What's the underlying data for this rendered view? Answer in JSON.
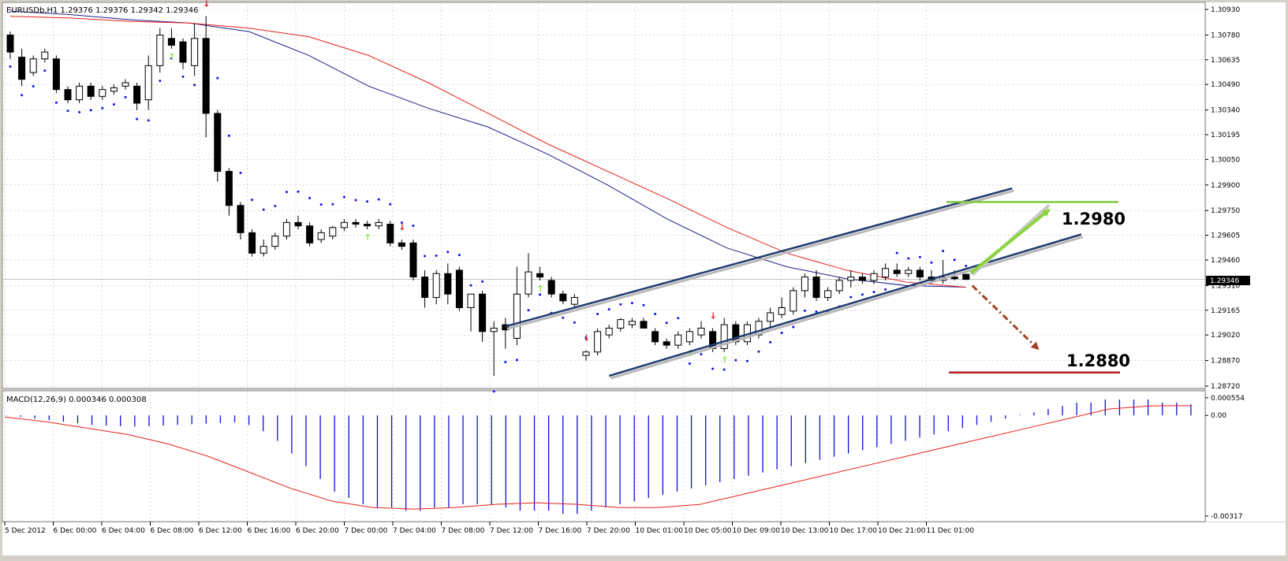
{
  "symbol_info": "EURUSDb,H1  1.29376 1.29376 1.29342 1.29346",
  "macd_info": "MACD(12,26,9) 0.000346 0.000308",
  "price_axis": {
    "min": 1.2872,
    "max": 1.3093,
    "ticks": [
      "1.30930",
      "1.30780",
      "1.30635",
      "1.30490",
      "1.30340",
      "1.30195",
      "1.30050",
      "1.29900",
      "1.29750",
      "1.29605",
      "1.29460",
      "1.29310",
      "1.29165",
      "1.29020",
      "1.28870",
      "1.28720"
    ],
    "current_price": "1.29346"
  },
  "macd_axis": {
    "min": -0.00317,
    "max": 0.00055,
    "ticks": [
      "0.000554",
      "0.00",
      "-0.00317"
    ]
  },
  "time_labels": [
    "5 Dec 2012",
    "6 Dec 00:00",
    "6 Dec 04:00",
    "6 Dec 08:00",
    "6 Dec 12:00",
    "6 Dec 16:00",
    "6 Dec 20:00",
    "7 Dec 00:00",
    "7 Dec 04:00",
    "7 Dec 08:00",
    "7 Dec 12:00",
    "7 Dec 16:00",
    "7 Dec 20:00",
    "10 Dec 01:00",
    "10 Dec 05:00",
    "10 Dec 09:00",
    "10 Dec 13:00",
    "10 Dec 17:00",
    "10 Dec 21:00",
    "11 Dec 01:00"
  ],
  "annotations": {
    "target_up": "1.2980",
    "target_down": "1.2880"
  },
  "colors": {
    "bg": "#ffffff",
    "grid": "#c0c0c0",
    "candle": "#000000",
    "ma_fast": "#e8211c",
    "ma_slow": "#1c1f8a",
    "sar": "#1010f0",
    "macd_hist": "#1010d8",
    "macd_signal": "#e8211c",
    "channel": "#1f3a6e",
    "target_up_line": "#80c840",
    "target_down_line": "#b02020",
    "arrow_up": "#8ad43c",
    "arrow_down": "#a04020",
    "signal_up": "#8ae840",
    "signal_down": "#e02020"
  },
  "chart_data": {
    "type": "candlestick",
    "timeframe": "H1",
    "ohlc": [
      [
        1.3078,
        1.308,
        1.3064,
        1.3068
      ],
      [
        1.3065,
        1.307,
        1.3048,
        1.3052
      ],
      [
        1.3056,
        1.3066,
        1.3054,
        1.3064
      ],
      [
        1.3064,
        1.307,
        1.3062,
        1.3068
      ],
      [
        1.3064,
        1.3066,
        1.3044,
        1.3046
      ],
      [
        1.3046,
        1.3048,
        1.3038,
        1.304
      ],
      [
        1.304,
        1.305,
        1.3038,
        1.3048
      ],
      [
        1.3048,
        1.305,
        1.304,
        1.3042
      ],
      [
        1.3042,
        1.3048,
        1.304,
        1.3046
      ],
      [
        1.3045,
        1.3049,
        1.3043,
        1.3047
      ],
      [
        1.3048,
        1.3052,
        1.3046,
        1.305
      ],
      [
        1.3048,
        1.305,
        1.3034,
        1.3038
      ],
      [
        1.304,
        1.3066,
        1.3034,
        1.306
      ],
      [
        1.306,
        1.3082,
        1.3056,
        1.3078
      ],
      [
        1.3076,
        1.3082,
        1.307,
        1.3072
      ],
      [
        1.3074,
        1.3076,
        1.3058,
        1.3062
      ],
      [
        1.306,
        1.3085,
        1.3054,
        1.3076
      ],
      [
        1.3076,
        1.3089,
        1.3018,
        1.3032
      ],
      [
        1.3032,
        1.3034,
        1.2992,
        1.2998
      ],
      [
        1.2998,
        1.3,
        1.2972,
        1.2978
      ],
      [
        1.2978,
        1.298,
        1.2958,
        1.2962
      ],
      [
        1.2962,
        1.2964,
        1.2948,
        1.295
      ],
      [
        1.295,
        1.2958,
        1.2948,
        1.2954
      ],
      [
        1.2954,
        1.2962,
        1.2952,
        1.296
      ],
      [
        1.296,
        1.297,
        1.2958,
        1.2968
      ],
      [
        1.2968,
        1.2972,
        1.2964,
        1.2966
      ],
      [
        1.2966,
        1.2968,
        1.2954,
        1.2956
      ],
      [
        1.2958,
        1.2964,
        1.2956,
        1.2962
      ],
      [
        1.296,
        1.2966,
        1.2958,
        1.2965
      ],
      [
        1.2965,
        1.297,
        1.2963,
        1.2968
      ],
      [
        1.2968,
        1.297,
        1.2965,
        1.2967
      ],
      [
        1.2967,
        1.2969,
        1.2964,
        1.2966
      ],
      [
        1.2966,
        1.297,
        1.2964,
        1.2968
      ],
      [
        1.2967,
        1.2969,
        1.2954,
        1.2956
      ],
      [
        1.2956,
        1.2958,
        1.2952,
        1.2954
      ],
      [
        1.2956,
        1.2958,
        1.2934,
        1.2936
      ],
      [
        1.2936,
        1.294,
        1.2918,
        1.2924
      ],
      [
        1.2924,
        1.294,
        1.292,
        1.2938
      ],
      [
        1.2938,
        1.2944,
        1.292,
        1.2926
      ],
      [
        1.294,
        1.2942,
        1.2916,
        1.2918
      ],
      [
        1.2918,
        1.2926,
        1.2904,
        1.2926
      ],
      [
        1.2926,
        1.2928,
        1.2898,
        1.2904
      ],
      [
        1.2904,
        1.291,
        1.2878,
        1.2906
      ],
      [
        1.2908,
        1.2912,
        1.2894,
        1.2905
      ],
      [
        1.29,
        1.2942,
        1.2896,
        1.2926
      ],
      [
        1.2926,
        1.295,
        1.2924,
        1.2939
      ],
      [
        1.2938,
        1.2942,
        1.2934,
        1.2936
      ],
      [
        1.2934,
        1.2936,
        1.2924,
        1.2926
      ],
      [
        1.2926,
        1.2928,
        1.292,
        1.2922
      ],
      [
        1.292,
        1.2926,
        1.2918,
        1.2924
      ],
      [
        1.289,
        1.2893,
        1.2887,
        1.2892
      ],
      [
        1.2892,
        1.2906,
        1.289,
        1.2904
      ],
      [
        1.2902,
        1.2908,
        1.29,
        1.2906
      ],
      [
        1.2906,
        1.2912,
        1.2904,
        1.2911
      ],
      [
        1.2908,
        1.2912,
        1.2906,
        1.291
      ],
      [
        1.291,
        1.2912,
        1.2906,
        1.2906
      ],
      [
        1.2904,
        1.2906,
        1.2896,
        1.2898
      ],
      [
        1.2898,
        1.29,
        1.2894,
        1.2896
      ],
      [
        1.2896,
        1.2904,
        1.2894,
        1.2902
      ],
      [
        1.2898,
        1.2906,
        1.2896,
        1.2904
      ],
      [
        1.2902,
        1.291,
        1.29,
        1.2906
      ],
      [
        1.2904,
        1.2906,
        1.2892,
        1.2894
      ],
      [
        1.2894,
        1.2912,
        1.2892,
        1.2908
      ],
      [
        1.2908,
        1.291,
        1.2896,
        1.2898
      ],
      [
        1.2898,
        1.291,
        1.2896,
        1.2908
      ],
      [
        1.2902,
        1.2912,
        1.29,
        1.291
      ],
      [
        1.291,
        1.2918,
        1.2906,
        1.2915
      ],
      [
        1.2914,
        1.2924,
        1.2912,
        1.2918
      ],
      [
        1.2916,
        1.293,
        1.2914,
        1.2928
      ],
      [
        1.2928,
        1.2938,
        1.2924,
        1.2936
      ],
      [
        1.2936,
        1.294,
        1.2922,
        1.2924
      ],
      [
        1.2924,
        1.293,
        1.2922,
        1.2928
      ],
      [
        1.2928,
        1.2936,
        1.2926,
        1.2934
      ],
      [
        1.2934,
        1.294,
        1.293,
        1.2936
      ],
      [
        1.2936,
        1.2938,
        1.2932,
        1.2934
      ],
      [
        1.2934,
        1.294,
        1.2932,
        1.2938
      ],
      [
        1.2936,
        1.2944,
        1.2934,
        1.2941
      ],
      [
        1.294,
        1.2944,
        1.2936,
        1.2938
      ],
      [
        1.2938,
        1.2942,
        1.2936,
        1.294
      ],
      [
        1.294,
        1.2942,
        1.2934,
        1.2936
      ],
      [
        1.2936,
        1.294,
        1.2932,
        1.2934
      ],
      [
        1.2934,
        1.2946,
        1.2932,
        1.2936
      ],
      [
        1.2936,
        1.294,
        1.2934,
        1.2935
      ],
      [
        1.29376,
        1.29376,
        1.29342,
        1.29346
      ]
    ],
    "ma_fast": [
      1.3089,
      1.3088,
      1.3086,
      1.3085,
      1.3082,
      1.3077,
      1.3066,
      1.305,
      1.3032,
      1.3014,
      1.2998,
      1.2982,
      1.2965,
      1.295,
      1.294,
      1.2933,
      1.293
    ],
    "ma_slow": [
      1.3092,
      1.309,
      1.3087,
      1.3085,
      1.308,
      1.3066,
      1.3048,
      1.3035,
      1.3024,
      1.3008,
      1.299,
      1.297,
      1.2953,
      1.2942,
      1.2935,
      1.2931,
      1.293
    ],
    "macd_hist": [
      -1e-05,
      -5e-05,
      -0.0001,
      -0.00015,
      -0.0002,
      -0.00025,
      -0.0003,
      -0.00032,
      -0.00034,
      -0.00035,
      -0.00034,
      -0.00032,
      -0.0003,
      -0.00028,
      -0.00026,
      -0.00024,
      -0.00022,
      -0.0003,
      -0.0005,
      -0.0008,
      -0.0012,
      -0.0016,
      -0.002,
      -0.0024,
      -0.0026,
      -0.0028,
      -0.0029,
      -0.0029,
      -0.003,
      -0.003,
      -0.0029,
      -0.0029,
      -0.0028,
      -0.0028,
      -0.0028,
      -0.0029,
      -0.003,
      -0.003,
      -0.003,
      -0.0031,
      -0.0031,
      -0.003,
      -0.0029,
      -0.0028,
      -0.0027,
      -0.0026,
      -0.0025,
      -0.0024,
      -0.0023,
      -0.0022,
      -0.0021,
      -0.002,
      -0.0019,
      -0.0018,
      -0.0017,
      -0.0016,
      -0.0015,
      -0.0014,
      -0.0013,
      -0.0012,
      -0.0011,
      -0.001,
      -0.0009,
      -0.0008,
      -0.0007,
      -0.0006,
      -0.0005,
      -0.0004,
      -0.0003,
      -0.0002,
      -0.0001,
      2e-05,
      0.0001,
      0.0002,
      0.0003,
      0.0004,
      0.0004,
      0.0005,
      0.0005,
      0.0005,
      0.0005,
      0.0004,
      0.0004,
      0.000346
    ],
    "macd_signal": [
      -5e-05,
      -0.0002,
      -0.0004,
      -0.0006,
      -0.0009,
      -0.0013,
      -0.0018,
      -0.0023,
      -0.0027,
      -0.0029,
      -0.00295,
      -0.0029,
      -0.0028,
      -0.00275,
      -0.0028,
      -0.0029,
      -0.0029,
      -0.0028,
      -0.0025,
      -0.0022,
      -0.0019,
      -0.0016,
      -0.0013,
      -0.001,
      -0.0007,
      -0.0004,
      -0.0001,
      0.0002,
      0.0003,
      0.000308
    ],
    "channel_upper": [
      [
        43,
        1.2907
      ],
      [
        87,
        1.2988
      ]
    ],
    "channel_lower": [
      [
        52,
        1.2878
      ],
      [
        93,
        1.2961
      ]
    ],
    "target_up": 1.298,
    "target_down": 1.288
  }
}
